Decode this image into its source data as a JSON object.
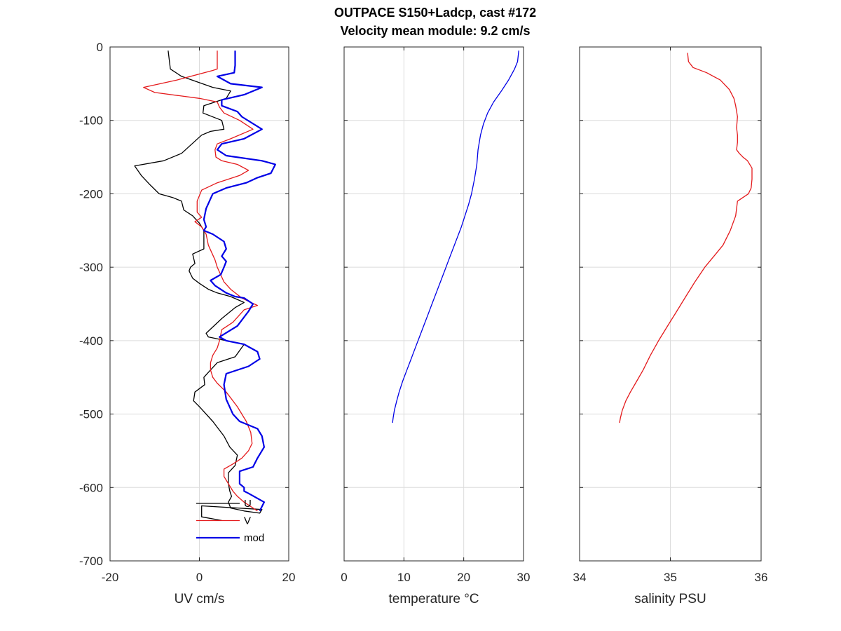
{
  "title_lines": [
    "OUTPACE S150+Ladcp, cast #172",
    "Velocity mean module:  9.2 cm/s"
  ],
  "chart_data": [
    {
      "type": "line",
      "xlabel": "UV cm/s",
      "ylabel": "",
      "xlim": [
        -20,
        20
      ],
      "ylim": [
        -700,
        0
      ],
      "xticks": [
        -20,
        0,
        20
      ],
      "yticks": [
        0,
        -100,
        -200,
        -300,
        -400,
        -500,
        -600,
        -700
      ],
      "grid": true,
      "legend_position": "bottom-right",
      "series": [
        {
          "name": "U",
          "color": "#000000",
          "x": [
            -7,
            -6.5,
            -4,
            3,
            7,
            6,
            1,
            0.8,
            5,
            5.5,
            2.5,
            0.5,
            -4,
            -8,
            -14.5,
            -13,
            -11,
            -9,
            -6,
            -4,
            -3.5,
            -1.5,
            0,
            1,
            1,
            -1.5,
            -1,
            -2,
            -2.3,
            -1.5,
            0,
            2,
            4,
            7,
            10,
            8,
            5,
            1.5,
            2,
            6,
            10,
            8,
            4,
            2.5,
            1,
            1.2,
            -1,
            -1.3,
            0,
            3,
            5.5,
            6.8,
            8.5,
            8,
            6.5,
            6.5,
            6.8,
            7.2,
            6.5,
            7,
            10,
            13.5,
            14,
            0.5,
            0.5,
            5
          ],
          "y": [
            -5,
            -30,
            -40,
            -55,
            -60,
            -70,
            -80,
            -90,
            -100,
            -112,
            -115,
            -120,
            -145,
            -155,
            -162,
            -175,
            -188,
            -200,
            -205,
            -210,
            -222,
            -230,
            -240,
            -250,
            -275,
            -282,
            -295,
            -300,
            -305,
            -315,
            -322,
            -330,
            -335,
            -340,
            -348,
            -355,
            -370,
            -390,
            -395,
            -400,
            -405,
            -422,
            -430,
            -440,
            -450,
            -460,
            -470,
            -482,
            -490,
            -510,
            -530,
            -545,
            -556,
            -570,
            -580,
            -595,
            -605,
            -612,
            -620,
            -628,
            -632,
            -635,
            -630,
            -625,
            -640,
            -645
          ]
        },
        {
          "name": "V",
          "color": "#e41a1c",
          "x": [
            4,
            4,
            3,
            -5,
            -12.5,
            -10,
            0,
            4,
            4.5,
            5.5,
            9,
            12,
            7,
            4,
            3.5,
            3.7,
            5,
            8.5,
            11,
            9,
            4,
            0.5,
            -0.5,
            -0.5,
            0.5,
            -1,
            0.5,
            1.5,
            2,
            3.5,
            4,
            5.5,
            7,
            9.5,
            11.5,
            13,
            10,
            7.5,
            5,
            4.5,
            4,
            3,
            2.5,
            2.5,
            3,
            4,
            6,
            8.5,
            10.5,
            11.5,
            11.8,
            11,
            9.5,
            7.5,
            5.5,
            5.5,
            6.5,
            7.5,
            8.5,
            10,
            13
          ],
          "y": [
            -5,
            -30,
            -32,
            -45,
            -55,
            -62,
            -70,
            -75,
            -82,
            -90,
            -100,
            -112,
            -125,
            -132,
            -140,
            -150,
            -155,
            -160,
            -168,
            -175,
            -185,
            -195,
            -210,
            -225,
            -232,
            -238,
            -245,
            -255,
            -270,
            -290,
            -300,
            -320,
            -330,
            -342,
            -348,
            -352,
            -358,
            -375,
            -385,
            -400,
            -410,
            -420,
            -430,
            -440,
            -450,
            -458,
            -470,
            -490,
            -510,
            -525,
            -540,
            -550,
            -560,
            -568,
            -575,
            -585,
            -595,
            -605,
            -612,
            -620,
            -632
          ]
        },
        {
          "name": "mod",
          "color": "#0000e6",
          "x": [
            8,
            8,
            7.8,
            4,
            7,
            14,
            10,
            5,
            5,
            8.5,
            9.5,
            14,
            10,
            5,
            4,
            6,
            14,
            17,
            16,
            13,
            10.5,
            6,
            3,
            1.5,
            1,
            1.5,
            1,
            3,
            5.5,
            6,
            5,
            6,
            5.5,
            4.8,
            2.5,
            3.5,
            6,
            8,
            10,
            12,
            11,
            8.5,
            4.5,
            6,
            10,
            13,
            13.5,
            11,
            6,
            5.5,
            6,
            7.5,
            9,
            13,
            14,
            14.5,
            13,
            12,
            9,
            9,
            10,
            10,
            11,
            14.5,
            13.5
          ],
          "y": [
            -5,
            -25,
            -35,
            -40,
            -50,
            -55,
            -65,
            -72,
            -80,
            -88,
            -95,
            -112,
            -125,
            -132,
            -140,
            -148,
            -155,
            -160,
            -172,
            -178,
            -185,
            -192,
            -200,
            -220,
            -235,
            -245,
            -250,
            -255,
            -265,
            -275,
            -285,
            -292,
            -300,
            -310,
            -318,
            -325,
            -335,
            -340,
            -342,
            -350,
            -360,
            -380,
            -395,
            -400,
            -405,
            -415,
            -425,
            -435,
            -445,
            -460,
            -480,
            -500,
            -510,
            -520,
            -530,
            -545,
            -560,
            -572,
            -578,
            -595,
            -600,
            -605,
            -608,
            -620,
            -632
          ]
        }
      ]
    },
    {
      "type": "line",
      "xlabel": "temperature °C",
      "ylabel": "",
      "xlim": [
        0,
        30
      ],
      "ylim": [
        -700,
        0
      ],
      "xticks": [
        0,
        10,
        20,
        30
      ],
      "yticks": [
        0,
        -100,
        -200,
        -300,
        -400,
        -500,
        -600,
        -700
      ],
      "grid": true,
      "series": [
        {
          "name": "",
          "color": "#0000e6",
          "x": [
            29.2,
            29,
            28.5,
            27.5,
            26.3,
            25,
            24,
            23.3,
            22.8,
            22.4,
            22.2,
            21.8,
            21.3,
            20.8,
            20.2,
            19.6,
            18.9,
            18.2,
            17.5,
            16.8,
            16.1,
            15.4,
            14.7,
            14,
            13.3,
            12.6,
            11.9,
            11.2,
            10.5,
            9.8,
            9.2,
            8.8,
            8.4,
            8.2,
            8.1
          ],
          "y": [
            -5,
            -20,
            -30,
            -45,
            -60,
            -75,
            -90,
            -105,
            -120,
            -140,
            -160,
            -180,
            -200,
            -215,
            -230,
            -245,
            -260,
            -275,
            -290,
            -305,
            -320,
            -335,
            -350,
            -365,
            -380,
            -395,
            -410,
            -425,
            -440,
            -455,
            -470,
            -482,
            -495,
            -505,
            -512
          ]
        }
      ]
    },
    {
      "type": "line",
      "xlabel": "salinity PSU",
      "ylabel": "",
      "xlim": [
        34,
        36
      ],
      "ylim": [
        -700,
        0
      ],
      "xticks": [
        34,
        35,
        36
      ],
      "yticks": [
        0,
        -100,
        -200,
        -300,
        -400,
        -500,
        -600,
        -700
      ],
      "grid": true,
      "series": [
        {
          "name": "",
          "color": "#e41a1c",
          "x": [
            35.19,
            35.2,
            35.25,
            35.4,
            35.55,
            35.65,
            35.7,
            35.72,
            35.74,
            35.73,
            35.74,
            35.74,
            35.73,
            35.76,
            35.8,
            35.85,
            35.9,
            35.9,
            35.89,
            35.86,
            35.8,
            35.74,
            35.73,
            35.72,
            35.66,
            35.58,
            35.48,
            35.38,
            35.27,
            35.17,
            35.07,
            34.97,
            34.87,
            34.78,
            34.7,
            34.63,
            34.56,
            34.51,
            34.47,
            34.45,
            34.44
          ],
          "y": [
            -8,
            -20,
            -28,
            -35,
            -45,
            -58,
            -70,
            -80,
            -95,
            -110,
            -120,
            -130,
            -140,
            -145,
            -150,
            -155,
            -165,
            -180,
            -192,
            -200,
            -205,
            -210,
            -220,
            -230,
            -250,
            -270,
            -285,
            -300,
            -320,
            -340,
            -360,
            -380,
            -400,
            -420,
            -440,
            -455,
            -470,
            -482,
            -495,
            -505,
            -512
          ]
        }
      ]
    }
  ]
}
